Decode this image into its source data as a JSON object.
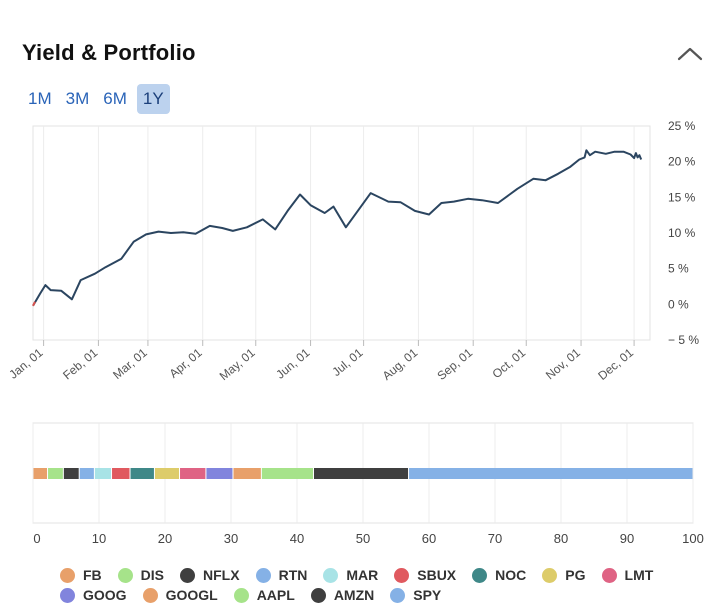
{
  "header": {
    "title": "Yield & Portfolio"
  },
  "range_buttons": [
    {
      "label": "1M",
      "active": false
    },
    {
      "label": "3M",
      "active": false
    },
    {
      "label": "6M",
      "active": false
    },
    {
      "label": "1Y",
      "active": true
    }
  ],
  "chart_data": [
    {
      "type": "line",
      "title": "",
      "xlabel": "",
      "ylabel": "",
      "x_tick_labels": [
        "Jan, 01",
        "Feb, 01",
        "Mar, 01",
        "Apr, 01",
        "May, 01",
        "Jun, 01",
        "Jul, 01",
        "Aug, 01",
        "Sep, 01",
        "Oct, 01",
        "Nov, 01",
        "Dec, 01"
      ],
      "y_tick_labels": [
        "25 %",
        "20 %",
        "15 %",
        "10 %",
        "5 %",
        "0 %",
        "− 5 %"
      ],
      "ylim": [
        -5,
        25
      ],
      "y_axis_side": "right",
      "grid": true,
      "line_color": "#2b4560",
      "start_segment_color": "#d9534f",
      "series": [
        {
          "x": [
            "Dec 26",
            "Dec 30",
            "Jan 2",
            "Jan 5",
            "Jan 11",
            "Jan 17",
            "Jan 22",
            "Jan 30",
            "Feb 5",
            "Feb 14",
            "Feb 21",
            "Feb 28",
            "Mar 7",
            "Mar 14",
            "Mar 21",
            "Mar 28",
            "Apr 5",
            "Apr 12",
            "Apr 18",
            "Apr 26",
            "May 5",
            "May 12",
            "May 19",
            "May 26",
            "Jun 1",
            "Jun 9",
            "Jun 14",
            "Jun 21",
            "Jun 28",
            "Jul 5",
            "Jul 15",
            "Jul 22",
            "Jul 30",
            "Aug 7",
            "Aug 14",
            "Aug 21",
            "Aug 29",
            "Sep 6",
            "Sep 15",
            "Sep 26",
            "Oct 5",
            "Oct 12",
            "Oct 19",
            "Oct 26",
            "Oct 31",
            "Nov 3",
            "Nov 4",
            "Nov 6",
            "Nov 9",
            "Nov 15",
            "Nov 20",
            "Nov 25",
            "Nov 29",
            "Dec 1",
            "Dec 2",
            "Dec 3",
            "Dec 4",
            "Dec 5"
          ],
          "values": [
            -0.2,
            1.5,
            2.7,
            2.0,
            1.9,
            0.7,
            3.4,
            4.3,
            5.2,
            6.4,
            8.8,
            9.8,
            10.2,
            10.0,
            10.1,
            9.9,
            11.0,
            10.7,
            10.3,
            10.8,
            11.9,
            10.5,
            13.1,
            15.4,
            13.9,
            12.8,
            13.7,
            10.8,
            13.2,
            15.6,
            14.4,
            14.3,
            13.1,
            12.6,
            14.2,
            14.4,
            14.8,
            14.6,
            14.2,
            16.2,
            17.6,
            17.4,
            18.3,
            19.3,
            20.3,
            20.6,
            21.6,
            20.9,
            21.4,
            21.1,
            21.4,
            21.4,
            21.0,
            20.5,
            21.2,
            20.6,
            20.9,
            20.3
          ]
        }
      ]
    },
    {
      "type": "bar",
      "title": "",
      "xlim": [
        0,
        100
      ],
      "x_tick_labels": [
        "0",
        "10",
        "20",
        "30",
        "40",
        "50",
        "60",
        "70",
        "80",
        "90",
        "100"
      ],
      "grid": true,
      "stacked": true,
      "orientation": "horizontal",
      "series": [
        {
          "name": "FB",
          "value": 2.2,
          "color": "#e8a06a"
        },
        {
          "name": "DIS",
          "value": 2.4,
          "color": "#a6e38a"
        },
        {
          "name": "NFLX",
          "value": 2.4,
          "color": "#3f3f3f"
        },
        {
          "name": "RTN",
          "value": 2.3,
          "color": "#85b1e6"
        },
        {
          "name": "MAR",
          "value": 2.6,
          "color": "#a8e3e6"
        },
        {
          "name": "SBUX",
          "value": 2.8,
          "color": "#e0595f"
        },
        {
          "name": "NOC",
          "value": 3.7,
          "color": "#3f8888"
        },
        {
          "name": "PG",
          "value": 3.8,
          "color": "#ddcc6a"
        },
        {
          "name": "LMT",
          "value": 4.0,
          "color": "#df6384"
        },
        {
          "name": "GOOG",
          "value": 4.1,
          "color": "#8184dd"
        },
        {
          "name": "GOOGL",
          "value": 4.3,
          "color": "#e8a06a"
        },
        {
          "name": "AAPL",
          "value": 7.9,
          "color": "#a6e38a"
        },
        {
          "name": "AMZN",
          "value": 14.4,
          "color": "#3f3f3f"
        },
        {
          "name": "SPY",
          "value": 43.1,
          "color": "#85b1e6"
        }
      ]
    }
  ]
}
